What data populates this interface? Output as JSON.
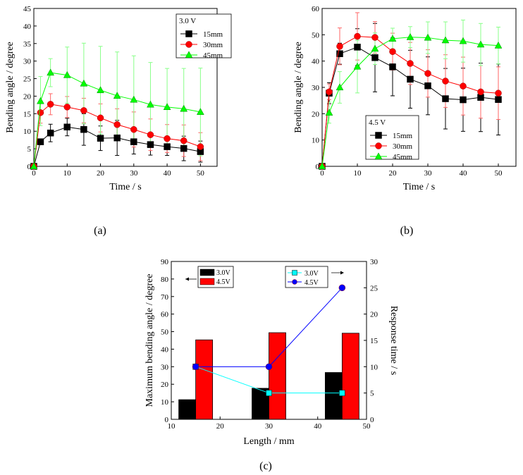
{
  "colors": {
    "s15": "#000000",
    "s30": "#ff0000",
    "s45": "#00ff00",
    "bar30": "#000000",
    "bar45": "#ff0000",
    "line30": "#00ffff",
    "line45": "#0000ff",
    "err15": "#000000",
    "err30": "#ff6666",
    "err45": "#88ff88"
  },
  "panels": {
    "a": {
      "label": "(a)"
    },
    "b": {
      "label": "(b)"
    },
    "c": {
      "label": "(c)"
    }
  },
  "chart_data": [
    {
      "id": "a",
      "type": "line",
      "xlabel": "Time / s",
      "ylabel": "Bending angle / degree",
      "xlim": [
        0,
        55
      ],
      "ylim": [
        0,
        45
      ],
      "xticks": [
        0,
        10,
        20,
        30,
        40,
        50
      ],
      "yticks": [
        0,
        5,
        10,
        15,
        20,
        25,
        30,
        35,
        40,
        45
      ],
      "legend": {
        "title": "3.0 V",
        "position": "top-right"
      },
      "x": [
        0,
        2,
        5,
        10,
        15,
        20,
        25,
        30,
        35,
        40,
        45,
        50
      ],
      "series": [
        {
          "name": "15mm",
          "marker": "square",
          "colorKey": "s15",
          "errKey": "err15",
          "values": [
            0,
            7,
            9.5,
            11.2,
            10.5,
            8,
            8.1,
            7,
            6.2,
            5.6,
            5.1,
            4.2
          ],
          "err": [
            0,
            0,
            2.5,
            2.5,
            4.5,
            3.5,
            5,
            3.5,
            3,
            2.5,
            3.5,
            3
          ]
        },
        {
          "name": "30mm",
          "marker": "circle",
          "colorKey": "s30",
          "errKey": "err30",
          "values": [
            0,
            15.3,
            17.7,
            16.9,
            15.9,
            13.8,
            11.9,
            10.5,
            9,
            7.9,
            7.3,
            5.6
          ],
          "err": [
            0,
            3,
            3,
            3,
            3.5,
            4,
            4.5,
            5,
            4.5,
            4,
            4.5,
            4
          ]
        },
        {
          "name": "45mm",
          "marker": "triangle",
          "colorKey": "s45",
          "errKey": "err45",
          "values": [
            0,
            18.6,
            26.7,
            26.0,
            23.6,
            21.7,
            20.1,
            19,
            17.6,
            16.9,
            16.4,
            15.5
          ],
          "err": [
            0,
            7,
            4,
            8,
            11.5,
            12.5,
            12.5,
            12.5,
            12,
            11,
            11.5,
            12.5
          ]
        }
      ]
    },
    {
      "id": "b",
      "type": "line",
      "xlabel": "Time / s",
      "ylabel": "Bending angle / degree",
      "xlim": [
        0,
        55
      ],
      "ylim": [
        0,
        60
      ],
      "xticks": [
        0,
        10,
        20,
        30,
        40,
        50
      ],
      "yticks": [
        0,
        10,
        20,
        30,
        40,
        50,
        60
      ],
      "legend": {
        "title": "4.5 V",
        "position": "bottom-left"
      },
      "x": [
        0,
        2,
        5,
        10,
        15,
        20,
        25,
        30,
        35,
        40,
        45,
        50
      ],
      "series": [
        {
          "name": "15mm",
          "marker": "square",
          "colorKey": "s15",
          "errKey": "err15",
          "values": [
            0,
            27.8,
            42.8,
            45.3,
            41.3,
            37.8,
            33.1,
            30.6,
            25.7,
            25.3,
            26.2,
            25.4
          ],
          "err": [
            0,
            4,
            4,
            7,
            13,
            11,
            11,
            11,
            11.5,
            12,
            13,
            13.5
          ]
        },
        {
          "name": "30mm",
          "marker": "circle",
          "colorKey": "s30",
          "errKey": "err30",
          "values": [
            0,
            28.3,
            45.6,
            49.4,
            49.0,
            43.6,
            39.1,
            35.3,
            32.4,
            30.5,
            28.3,
            27.8
          ],
          "err": [
            0,
            3,
            7,
            9,
            6,
            7,
            8,
            9,
            10,
            11,
            10,
            10
          ]
        },
        {
          "name": "45mm",
          "marker": "triangle",
          "colorKey": "s45",
          "errKey": "err45",
          "values": [
            0,
            20.4,
            30.0,
            37.9,
            44.7,
            48.5,
            49.1,
            48.9,
            47.9,
            47.6,
            46.3,
            45.9
          ],
          "err": [
            0,
            4,
            6,
            10,
            6,
            4,
            4,
            6,
            7,
            8,
            8,
            7
          ]
        }
      ]
    },
    {
      "id": "c",
      "type": "bar",
      "xlabel": "Length / mm",
      "ylabel": "Maximum bending angle / degree",
      "y2label": "Response time / s",
      "xlim": [
        10,
        50
      ],
      "ylim": [
        0,
        90
      ],
      "y2lim": [
        0,
        30
      ],
      "xticks": [
        10,
        20,
        30,
        40,
        50
      ],
      "yticks": [
        0,
        10,
        20,
        30,
        40,
        50,
        60,
        70,
        80,
        90
      ],
      "y2ticks": [
        0,
        5,
        10,
        15,
        20,
        25,
        30
      ],
      "legend_left": {
        "position": "top-left",
        "arrow": "left"
      },
      "legend_right": {
        "position": "top-center",
        "arrow": "right"
      },
      "x": [
        15,
        30,
        45
      ],
      "bars": [
        {
          "name": "3.0V",
          "colorKey": "bar30",
          "values": [
            11.2,
            17.7,
            26.7
          ]
        },
        {
          "name": "4.5V",
          "colorKey": "bar45",
          "values": [
            45.3,
            49.4,
            49.1
          ]
        }
      ],
      "lines": [
        {
          "name": "3.0V",
          "marker": "square",
          "colorKey": "line30",
          "values": [
            10,
            5,
            5
          ]
        },
        {
          "name": "4.5V",
          "marker": "circle",
          "colorKey": "line45",
          "values": [
            10,
            10,
            25
          ]
        }
      ]
    }
  ]
}
